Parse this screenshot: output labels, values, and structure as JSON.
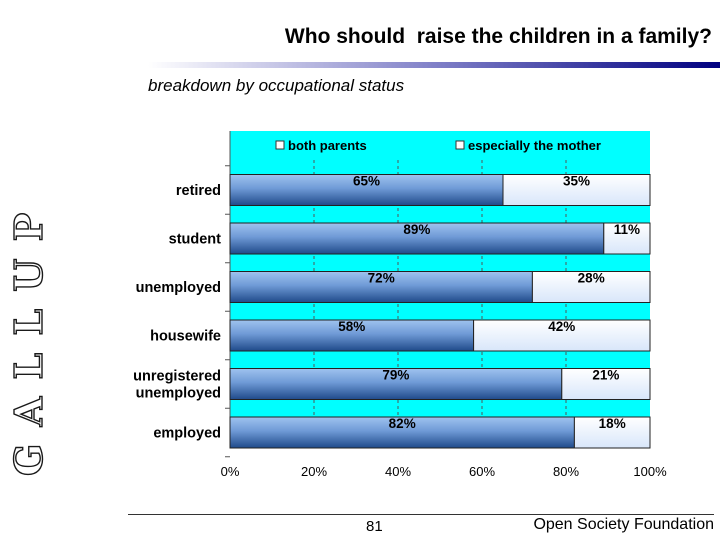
{
  "logo": {
    "text": "G A L L U P"
  },
  "header": {
    "title": "Who should  raise the children in a family?",
    "subtitle": "breakdown by occupational status"
  },
  "footer": {
    "page_number": "81",
    "organization": "Open Society Foundation"
  },
  "colors": {
    "plot_background": "#00ffff",
    "both_parents_bar": "#2f5fa0",
    "both_parents_bar_light": "#9fc3ef",
    "especially_mother_bar": "#e6f0ff",
    "header_bar_dark": "#000080"
  },
  "chart_data": {
    "type": "bar",
    "orientation": "horizontal",
    "stacked": true,
    "percent": true,
    "categories": [
      "retired",
      "student",
      "unemployed",
      "housewife",
      "unregistered\nunemployed",
      "employed"
    ],
    "series": [
      {
        "name": "both parents",
        "values": [
          65,
          89,
          72,
          58,
          79,
          82
        ],
        "labels": [
          "65%",
          "89%",
          "72%",
          "58%",
          "79%",
          "82%"
        ]
      },
      {
        "name": "especially the mother",
        "values": [
          35,
          11,
          28,
          42,
          21,
          18
        ],
        "labels": [
          "35%",
          "11%",
          "28%",
          "42%",
          "21%",
          "18%"
        ]
      }
    ],
    "x_ticks": [
      "0%",
      "20%",
      "40%",
      "60%",
      "80%",
      "100%"
    ],
    "xlim": [
      0,
      100
    ],
    "legend_position": "top",
    "grid": "vertical dashed"
  }
}
